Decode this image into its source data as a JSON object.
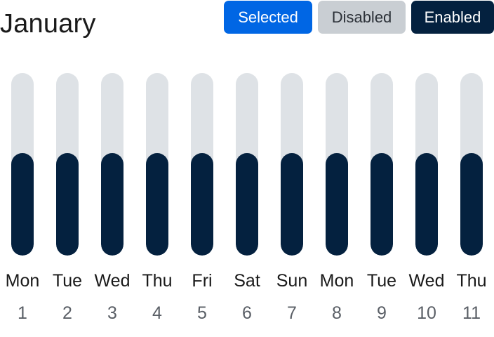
{
  "header": {
    "month": "January",
    "buttons": {
      "selected": "Selected",
      "disabled": "Disabled",
      "enabled": "Enabled"
    }
  },
  "colors": {
    "selected_bg": "#0066e4",
    "selected_text": "#ffffff",
    "disabled_bg": "#c9ced3",
    "disabled_text": "#2c3138",
    "enabled_bg": "#04213f",
    "enabled_text": "#ffffff",
    "track": "#dee2e6",
    "fill": "#04213f"
  },
  "days": [
    {
      "weekday": "Mon",
      "date": "1",
      "level": 0.56
    },
    {
      "weekday": "Tue",
      "date": "2",
      "level": 0.56
    },
    {
      "weekday": "Wed",
      "date": "3",
      "level": 0.56
    },
    {
      "weekday": "Thu",
      "date": "4",
      "level": 0.56
    },
    {
      "weekday": "Fri",
      "date": "5",
      "level": 0.56
    },
    {
      "weekday": "Sat",
      "date": "6",
      "level": 0.56
    },
    {
      "weekday": "Sun",
      "date": "7",
      "level": 0.56
    },
    {
      "weekday": "Mon",
      "date": "8",
      "level": 0.56
    },
    {
      "weekday": "Tue",
      "date": "9",
      "level": 0.56
    },
    {
      "weekday": "Wed",
      "date": "10",
      "level": 0.56
    },
    {
      "weekday": "Thu",
      "date": "11",
      "level": 0.56
    }
  ]
}
